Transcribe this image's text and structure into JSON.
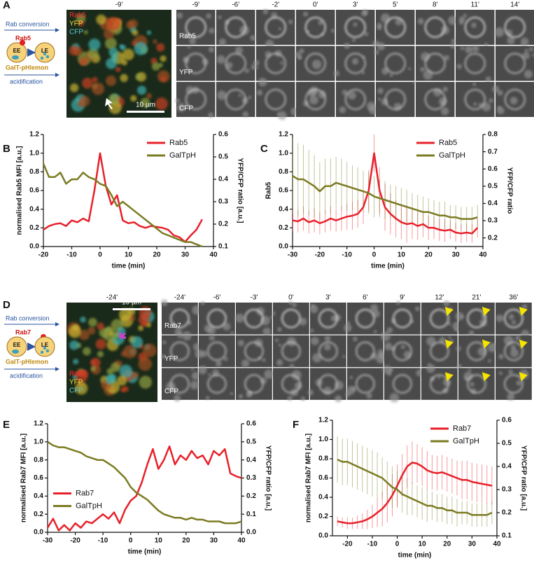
{
  "panel_labels": [
    "A",
    "B",
    "C",
    "D",
    "E",
    "F"
  ],
  "panel_a": {
    "schematic": {
      "title": "Rab conversion",
      "marker": "Rab5",
      "ee": "EE",
      "le": "LE",
      "probe": "GalT-pHlemon",
      "process": "acidification"
    },
    "overview_time": "-9'",
    "overview_channels": [
      "Rab5",
      "YFP",
      "CFP"
    ],
    "scale_bar": "10 µm",
    "times": [
      "-9'",
      "-6'",
      "-2'",
      "0'",
      "3'",
      "5'",
      "8'",
      "11'",
      "14'"
    ],
    "rows": [
      "Rab5",
      "YFP",
      "CFP"
    ]
  },
  "panel_d": {
    "schematic": {
      "title": "Rab conversion",
      "marker": "Rab7",
      "ee": "EE",
      "le": "LE",
      "probe": "GalT-pHlemon",
      "process": "acidification"
    },
    "overview_time": "-24'",
    "overview_channels": [
      "Rab7",
      "YFP",
      "CFP"
    ],
    "scale_bar": "10 µm",
    "times": [
      "-24'",
      "-6'",
      "-3'",
      "0'",
      "3'",
      "6'",
      "9'",
      "12'",
      "21'",
      "36'"
    ],
    "rows": [
      "Rab7",
      "YFP",
      "CFP"
    ]
  },
  "chart_data": [
    {
      "type": "line",
      "xlabel": "time (min)",
      "ylabel": "normalised Rab5 MFI [a.u.]",
      "y2label": "YFP/CFP ratio [a.u.]",
      "legend": "upper right",
      "xlim": [
        -20,
        40
      ],
      "xticks": [
        -20,
        -10,
        0,
        10,
        20,
        30,
        40
      ],
      "ylim": [
        0,
        1.2
      ],
      "yticks": [
        {
          "value": 0,
          "label": "0.0"
        },
        0.2,
        0.4,
        0.6,
        0.8,
        {
          "value": 1,
          "label": "1.0"
        },
        1.2
      ],
      "y2lim": [
        0.1,
        0.6
      ],
      "y2ticks": [
        0.1,
        0.2,
        0.3,
        0.4,
        0.5,
        0.6
      ],
      "x": [
        -20,
        -18,
        -16,
        -14,
        -12,
        -10,
        -8,
        -6,
        -4,
        -2,
        0,
        2,
        4,
        6,
        8,
        10,
        12,
        14,
        16,
        18,
        20,
        22,
        24,
        26,
        28,
        30,
        32,
        34,
        36
      ],
      "series": [
        {
          "name": "Rab5",
          "color": "#e8202a",
          "values": [
            0.18,
            0.22,
            0.24,
            0.25,
            0.22,
            0.28,
            0.26,
            0.3,
            0.27,
            0.6,
            1.0,
            0.65,
            0.45,
            0.55,
            0.28,
            0.25,
            0.26,
            0.22,
            0.2,
            0.22,
            0.21,
            0.2,
            0.18,
            0.12,
            0.1,
            0.05,
            0.12,
            0.18,
            0.29
          ]
        },
        {
          "name": "GalTpH",
          "color": "#7b7b22",
          "axis": "y2",
          "values": [
            0.47,
            0.41,
            0.41,
            0.43,
            0.38,
            0.4,
            0.4,
            0.43,
            0.41,
            0.4,
            0.38,
            0.37,
            0.33,
            0.28,
            0.3,
            0.28,
            0.26,
            0.24,
            0.22,
            0.2,
            0.18,
            0.16,
            0.15,
            0.14,
            0.13,
            0.12,
            0.12,
            0.11,
            0.1
          ]
        }
      ]
    },
    {
      "type": "line",
      "xlabel": "time (min)",
      "ylabel": "Rab5",
      "y2label": "YFP/CFP ratio",
      "legend": "upper right",
      "xlim": [
        -30,
        40
      ],
      "xticks": [
        -30,
        -20,
        -10,
        0,
        10,
        20,
        30,
        40
      ],
      "ylim": [
        0,
        1.2
      ],
      "yticks": [
        {
          "value": 0,
          "label": "0.0"
        },
        0.2,
        0.4,
        0.6,
        0.8,
        {
          "value": 1,
          "label": "1.0"
        },
        1.2
      ],
      "y2lim": [
        0.15,
        0.8
      ],
      "y2ticks": [
        0.2,
        0.3,
        0.4,
        0.5,
        0.6,
        0.7,
        0.8
      ],
      "x": [
        -30,
        -28,
        -26,
        -24,
        -22,
        -20,
        -18,
        -16,
        -14,
        -12,
        -10,
        -8,
        -6,
        -4,
        -2,
        0,
        2,
        4,
        6,
        8,
        10,
        12,
        14,
        16,
        18,
        20,
        22,
        24,
        26,
        28,
        30,
        32,
        34,
        36,
        38
      ],
      "series": [
        {
          "name": "Rab5",
          "color": "#e8202a",
          "values": [
            0.28,
            0.27,
            0.3,
            0.26,
            0.28,
            0.25,
            0.27,
            0.3,
            0.28,
            0.3,
            0.32,
            0.33,
            0.35,
            0.42,
            0.6,
            1.0,
            0.6,
            0.42,
            0.35,
            0.3,
            0.26,
            0.24,
            0.25,
            0.22,
            0.24,
            0.2,
            0.2,
            0.18,
            0.17,
            0.18,
            0.15,
            0.14,
            0.15,
            0.14,
            0.2
          ],
          "errors": [
            0.12,
            0.12,
            0.13,
            0.12,
            0.13,
            0.12,
            0.12,
            0.13,
            0.12,
            0.13,
            0.14,
            0.15,
            0.15,
            0.18,
            0.22,
            0.2,
            0.25,
            0.25,
            0.22,
            0.2,
            0.18,
            0.2,
            0.17,
            0.15,
            0.14,
            0.13,
            0.12,
            0.12,
            0.12,
            0.1,
            0.1,
            0.1,
            0.1,
            0.1,
            0.1
          ]
        },
        {
          "name": "GalTpH",
          "color": "#7b7b22",
          "axis": "y2",
          "values": [
            0.56,
            0.54,
            0.54,
            0.52,
            0.5,
            0.47,
            0.5,
            0.5,
            0.52,
            0.51,
            0.5,
            0.49,
            0.48,
            0.47,
            0.46,
            0.44,
            0.43,
            0.42,
            0.41,
            0.4,
            0.39,
            0.38,
            0.37,
            0.36,
            0.35,
            0.35,
            0.34,
            0.33,
            0.33,
            0.32,
            0.32,
            0.31,
            0.31,
            0.31,
            0.32
          ],
          "errors": [
            0.22,
            0.21,
            0.2,
            0.19,
            0.18,
            0.17,
            0.16,
            0.16,
            0.15,
            0.15,
            0.14,
            0.13,
            0.13,
            0.12,
            0.12,
            0.12,
            0.11,
            0.11,
            0.1,
            0.1,
            0.1,
            0.1,
            0.09,
            0.09,
            0.09,
            0.08,
            0.08,
            0.08,
            0.08,
            0.07,
            0.07,
            0.07,
            0.07,
            0.07,
            0.07
          ]
        }
      ]
    },
    {
      "type": "line",
      "xlabel": "time (min)",
      "ylabel": "normalised Rab7 MFI [a.u.]",
      "y2label": "YFP/CFP ratio [a.u.]",
      "legend": "center left",
      "xlim": [
        -30,
        40
      ],
      "xticks": [
        -30,
        -20,
        -10,
        0,
        10,
        20,
        30,
        40
      ],
      "ylim": [
        0,
        1.2
      ],
      "yticks": [
        {
          "value": 0,
          "label": "0.0"
        },
        0.2,
        0.4,
        0.6,
        0.8,
        {
          "value": 1,
          "label": "1.0"
        },
        1.2
      ],
      "y2lim": [
        0,
        0.6
      ],
      "y2ticks": [
        {
          "value": 0,
          "label": "0.0"
        },
        0.1,
        0.2,
        0.3,
        0.4,
        0.5,
        0.6
      ],
      "x": [
        -30,
        -28,
        -26,
        -24,
        -22,
        -20,
        -18,
        -16,
        -14,
        -12,
        -10,
        -8,
        -6,
        -4,
        -2,
        0,
        2,
        4,
        6,
        8,
        10,
        12,
        14,
        16,
        18,
        20,
        22,
        24,
        26,
        28,
        30,
        32,
        34,
        36,
        38,
        40
      ],
      "series": [
        {
          "name": "Rab7",
          "color": "#e8202a",
          "values": [
            0.05,
            0.15,
            0.02,
            0.08,
            0.02,
            0.1,
            0.05,
            0.12,
            0.1,
            0.15,
            0.2,
            0.15,
            0.22,
            0.1,
            0.25,
            0.35,
            0.4,
            0.55,
            0.75,
            0.92,
            0.7,
            0.8,
            0.95,
            0.75,
            0.85,
            0.8,
            0.9,
            0.82,
            0.85,
            0.75,
            0.9,
            0.85,
            0.92,
            0.65,
            0.62,
            0.6
          ]
        },
        {
          "name": "GalTpH",
          "color": "#7b7b22",
          "axis": "y2",
          "values": [
            0.5,
            0.48,
            0.47,
            0.47,
            0.46,
            0.45,
            0.44,
            0.42,
            0.41,
            0.4,
            0.4,
            0.38,
            0.36,
            0.33,
            0.3,
            0.25,
            0.22,
            0.2,
            0.18,
            0.15,
            0.12,
            0.1,
            0.09,
            0.08,
            0.08,
            0.07,
            0.08,
            0.07,
            0.07,
            0.06,
            0.06,
            0.06,
            0.05,
            0.05,
            0.05,
            0.06
          ]
        }
      ]
    },
    {
      "type": "line",
      "xlabel": "time (min)",
      "ylabel": "normalised Rab7 MFI [a.u.]",
      "y2label": "YFP/CFP ratio [a.u.]",
      "legend": "upper right",
      "xlim": [
        -26,
        40
      ],
      "xticks": [
        -20,
        -10,
        0,
        10,
        20,
        30,
        40
      ],
      "ylim": [
        0,
        1.2
      ],
      "yticks": [
        {
          "value": 0,
          "label": "0.0"
        },
        0.2,
        0.4,
        0.6,
        0.8,
        {
          "value": 1,
          "label": "1.0"
        },
        1.2
      ],
      "y2lim": [
        0.1,
        0.6
      ],
      "y2ticks": [
        0.1,
        0.2,
        0.3,
        0.4,
        0.5,
        0.6
      ],
      "x": [
        -24,
        -22,
        -20,
        -18,
        -16,
        -14,
        -12,
        -10,
        -8,
        -6,
        -4,
        -2,
        0,
        2,
        4,
        6,
        8,
        10,
        12,
        14,
        16,
        18,
        20,
        22,
        24,
        26,
        28,
        30,
        32,
        34,
        36,
        38
      ],
      "series": [
        {
          "name": "Rab7",
          "color": "#e8202a",
          "values": [
            0.15,
            0.14,
            0.13,
            0.13,
            0.14,
            0.15,
            0.17,
            0.2,
            0.24,
            0.28,
            0.34,
            0.42,
            0.52,
            0.63,
            0.72,
            0.76,
            0.75,
            0.72,
            0.68,
            0.66,
            0.65,
            0.66,
            0.64,
            0.62,
            0.6,
            0.58,
            0.58,
            0.56,
            0.55,
            0.54,
            0.53,
            0.52
          ],
          "errors": [
            0.05,
            0.05,
            0.06,
            0.06,
            0.07,
            0.08,
            0.1,
            0.12,
            0.15,
            0.18,
            0.2,
            0.22,
            0.22,
            0.22,
            0.22,
            0.22,
            0.2,
            0.2,
            0.2,
            0.18,
            0.18,
            0.18,
            0.18,
            0.18,
            0.18,
            0.2,
            0.2,
            0.2,
            0.2,
            0.2,
            0.2,
            0.2
          ]
        },
        {
          "name": "GalTpH",
          "color": "#7b7b22",
          "axis": "y2",
          "values": [
            0.43,
            0.42,
            0.42,
            0.41,
            0.4,
            0.39,
            0.38,
            0.37,
            0.36,
            0.35,
            0.33,
            0.31,
            0.3,
            0.28,
            0.27,
            0.26,
            0.25,
            0.24,
            0.23,
            0.23,
            0.22,
            0.22,
            0.21,
            0.21,
            0.2,
            0.2,
            0.2,
            0.19,
            0.19,
            0.19,
            0.19,
            0.2
          ],
          "errors": [
            0.1,
            0.1,
            0.1,
            0.1,
            0.1,
            0.1,
            0.1,
            0.1,
            0.1,
            0.09,
            0.09,
            0.09,
            0.08,
            0.08,
            0.08,
            0.07,
            0.07,
            0.07,
            0.07,
            0.06,
            0.06,
            0.06,
            0.06,
            0.06,
            0.06,
            0.05,
            0.05,
            0.05,
            0.05,
            0.05,
            0.05,
            0.05
          ]
        }
      ]
    }
  ]
}
